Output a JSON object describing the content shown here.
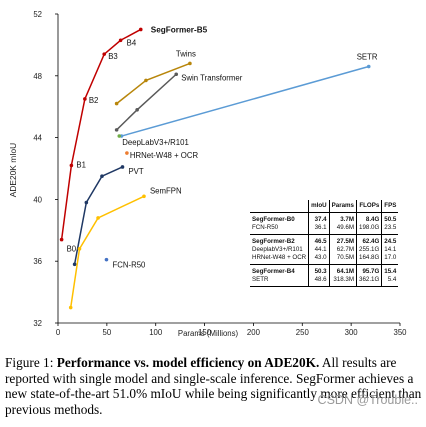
{
  "chart_data": {
    "type": "line",
    "xlabel": "Params (Millions)",
    "ylabel": "ADE20K mIoU",
    "xlim": [
      0,
      350
    ],
    "ylim": [
      32,
      52
    ],
    "xticks": [
      0,
      50,
      100,
      150,
      200,
      250,
      300,
      350
    ],
    "yticks": [
      32,
      36,
      40,
      44,
      48,
      52
    ],
    "grid": false,
    "series": [
      {
        "name": "SegFormer-B5",
        "color": "#c00000",
        "x": [
          3.7,
          13.7,
          27.5,
          47.3,
          64.1,
          84.7
        ],
        "y": [
          37.4,
          42.2,
          46.5,
          49.4,
          50.3,
          51.0
        ],
        "labels": [
          "B0",
          "B1",
          "B2",
          "B3",
          "B4",
          "SegFormer-B5"
        ]
      },
      {
        "name": "Twins",
        "color": "#b8860b",
        "x": [
          60,
          90,
          135
        ],
        "y": [
          46.2,
          47.7,
          48.8
        ]
      },
      {
        "name": "Swin Transformer",
        "color": "#595959",
        "x": [
          60,
          81,
          121
        ],
        "y": [
          44.5,
          45.8,
          48.1
        ]
      },
      {
        "name": "SETR",
        "color": "#5b9bd5",
        "x": [
          65,
          318
        ],
        "y": [
          44.1,
          48.6
        ]
      },
      {
        "name": "DeepLabV3+/R101",
        "color": "#70ad47",
        "x": [
          62.7
        ],
        "y": [
          44.1
        ]
      },
      {
        "name": "HRNet-W48 + OCR",
        "color": "#ed7d31",
        "x": [
          70.5
        ],
        "y": [
          43.0
        ]
      },
      {
        "name": "PVT",
        "color": "#1f3864",
        "x": [
          17,
          29,
          45,
          66
        ],
        "y": [
          35.8,
          39.8,
          41.5,
          42.1
        ]
      },
      {
        "name": "SemFPN",
        "color": "#ffc000",
        "x": [
          13,
          22,
          41,
          88
        ],
        "y": [
          33.0,
          36.8,
          38.8,
          40.2
        ]
      },
      {
        "name": "FCN-R50",
        "color": "#4472c4",
        "x": [
          49.6
        ],
        "y": [
          36.1
        ]
      }
    ]
  },
  "table": {
    "headers": [
      "",
      "mIoU",
      "Params",
      "FLOPs",
      "FPS"
    ],
    "groups": [
      [
        {
          "name": "SegFormer-B0",
          "bold": true,
          "cells": [
            "37.4",
            "3.7M",
            "8.4G",
            "50.5"
          ]
        },
        {
          "name": "FCN-R50",
          "bold": false,
          "cells": [
            "36.1",
            "49.6M",
            "198.0G",
            "23.5"
          ]
        }
      ],
      [
        {
          "name": "SegFormer-B2",
          "bold": true,
          "cells": [
            "46.5",
            "27.5M",
            "62.4G",
            "24.5"
          ]
        },
        {
          "name": "DeeplabV3+/R101",
          "bold": false,
          "cells": [
            "44.1",
            "62.7M",
            "255.1G",
            "14.1"
          ]
        },
        {
          "name": "HRNet-W48 + OCR",
          "bold": false,
          "cells": [
            "43.0",
            "70.5M",
            "164.8G",
            "17.0"
          ]
        }
      ],
      [
        {
          "name": "SegFormer-B4",
          "bold": true,
          "cells": [
            "50.3",
            "64.1M",
            "95.7G",
            "15.4"
          ]
        },
        {
          "name": "SETR",
          "bold": false,
          "cells": [
            "48.6",
            "318.3M",
            "362.1G",
            "5.4"
          ]
        }
      ]
    ]
  },
  "caption": {
    "prefix": "Figure 1: ",
    "bold": "Performance vs. model efficiency on ADE20K.",
    "rest": " All results are reported with single model and single-scale inference. SegFormer achieves a new state-of-the-art 51.0% mIoU while being significantly more efficient than previous methods."
  },
  "watermark": "CSDN @Trouble.."
}
